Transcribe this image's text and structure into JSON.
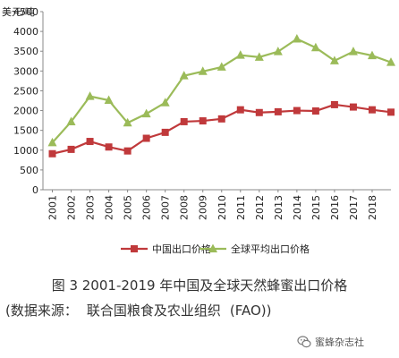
{
  "chart_data": {
    "type": "line",
    "title": "",
    "ylabel": "美元/吨",
    "xlabel": "",
    "ylim": [
      0,
      4500
    ],
    "yticks": [
      0,
      500,
      1000,
      1500,
      2000,
      2500,
      3000,
      3500,
      4000,
      4500
    ],
    "grid": false,
    "legend_position": "bottom",
    "categories": [
      "2001",
      "2002",
      "2003",
      "2004",
      "2005",
      "2006",
      "2007",
      "2008",
      "2009",
      "2010",
      "2011",
      "2012",
      "2013",
      "2014",
      "2015",
      "2016",
      "2017",
      "2018",
      "2019"
    ],
    "tick_labels": [
      "2001",
      "2002",
      "2003",
      "2004",
      "2005",
      "2006",
      "2007",
      "2008",
      "2009",
      "2010",
      "2011",
      "2012",
      "2013",
      "2014",
      "2015",
      "2016",
      "2017",
      "2018"
    ],
    "series": [
      {
        "name": "中国出口价格",
        "color": "#c0393b",
        "marker": "square",
        "values": [
          910,
          1020,
          1220,
          1080,
          980,
          1300,
          1450,
          1720,
          1740,
          1790,
          2020,
          1950,
          1970,
          2000,
          1990,
          2150,
          2090,
          2020,
          1960
        ]
      },
      {
        "name": "全球平均出口价格",
        "color": "#9bbb59",
        "marker": "triangle",
        "values": [
          1190,
          1720,
          2360,
          2260,
          1690,
          1920,
          2200,
          2880,
          2990,
          3100,
          3400,
          3350,
          3490,
          3810,
          3590,
          3260,
          3490,
          3390,
          3220
        ]
      }
    ]
  },
  "caption": {
    "line1": "图 3 2001-2019 年中国及全球天然蜂蜜出口价格",
    "line2_prefix": "(数据来源：",
    "line2_source": "联合国粮食及农业组织",
    "line2_suffix": "(FAO))"
  },
  "watermark": {
    "icon": "wechat-icon",
    "text": "蜜蜂杂志社"
  }
}
